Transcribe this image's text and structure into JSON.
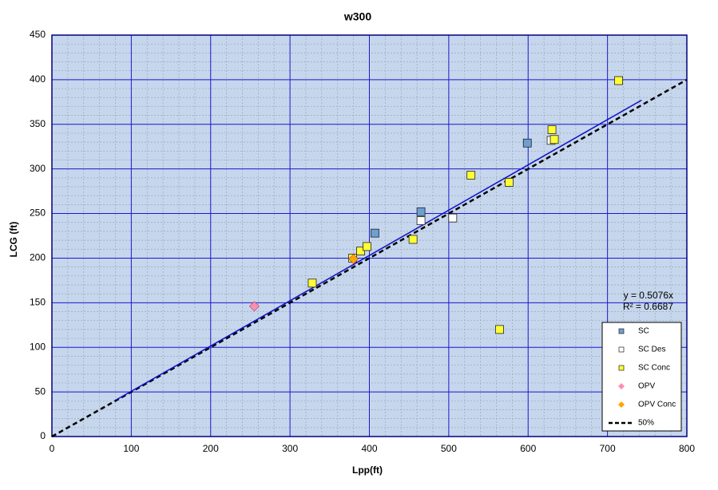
{
  "chart_data": {
    "type": "scatter",
    "title": "w300",
    "x_label": "Lpp(ft)",
    "y_label": "LCG (ft)",
    "xlim": [
      0,
      800
    ],
    "xticks": [
      0,
      100,
      200,
      300,
      400,
      500,
      600,
      700,
      800
    ],
    "ylim": [
      0,
      450
    ],
    "yticks": [
      0,
      50,
      100,
      150,
      200,
      250,
      300,
      350,
      400,
      450
    ],
    "grid": true,
    "xminor": 20,
    "yminor": 10,
    "plot_color": "#c6d6ec",
    "grid_color": "#1a1ad0",
    "minor_grid_color": "#9aa8b8",
    "legend": "lower right",
    "series": [
      {
        "name": "SC",
        "marker": "square",
        "color": "#6d9fd2",
        "x": [
          465,
          407,
          599
        ],
        "values": [
          252,
          228,
          329
        ]
      },
      {
        "name": "SC Des",
        "marker": "square",
        "color": "#ffffff",
        "x": [
          465,
          505,
          629
        ],
        "values": [
          242,
          245,
          332
        ]
      },
      {
        "name": "SC Conc",
        "marker": "square",
        "color": "#ffff33",
        "x": [
          328,
          379,
          389,
          397,
          455,
          528,
          576,
          564,
          630,
          633,
          714
        ],
        "values": [
          172,
          200,
          208,
          213,
          221,
          293,
          285,
          120,
          344,
          333,
          399
        ]
      },
      {
        "name": "OPV",
        "marker": "diamond",
        "color": "#ff8fb0",
        "x": [
          255
        ],
        "values": [
          146
        ]
      },
      {
        "name": "OPV Conc",
        "marker": "diamond",
        "color": "#ffa500",
        "x": [
          380
        ],
        "values": [
          199
        ]
      },
      {
        "name": "50%",
        "marker": "line",
        "color": "#000000",
        "dashed": true,
        "x": [
          0,
          800
        ],
        "values": [
          0,
          400
        ]
      }
    ],
    "trendline": {
      "color": "#1010c8",
      "x": [
        80,
        743
      ],
      "values": [
        40.6,
        377.1
      ]
    },
    "annotations": [
      "y = 0.5076x",
      "R² = 0.6687"
    ]
  }
}
